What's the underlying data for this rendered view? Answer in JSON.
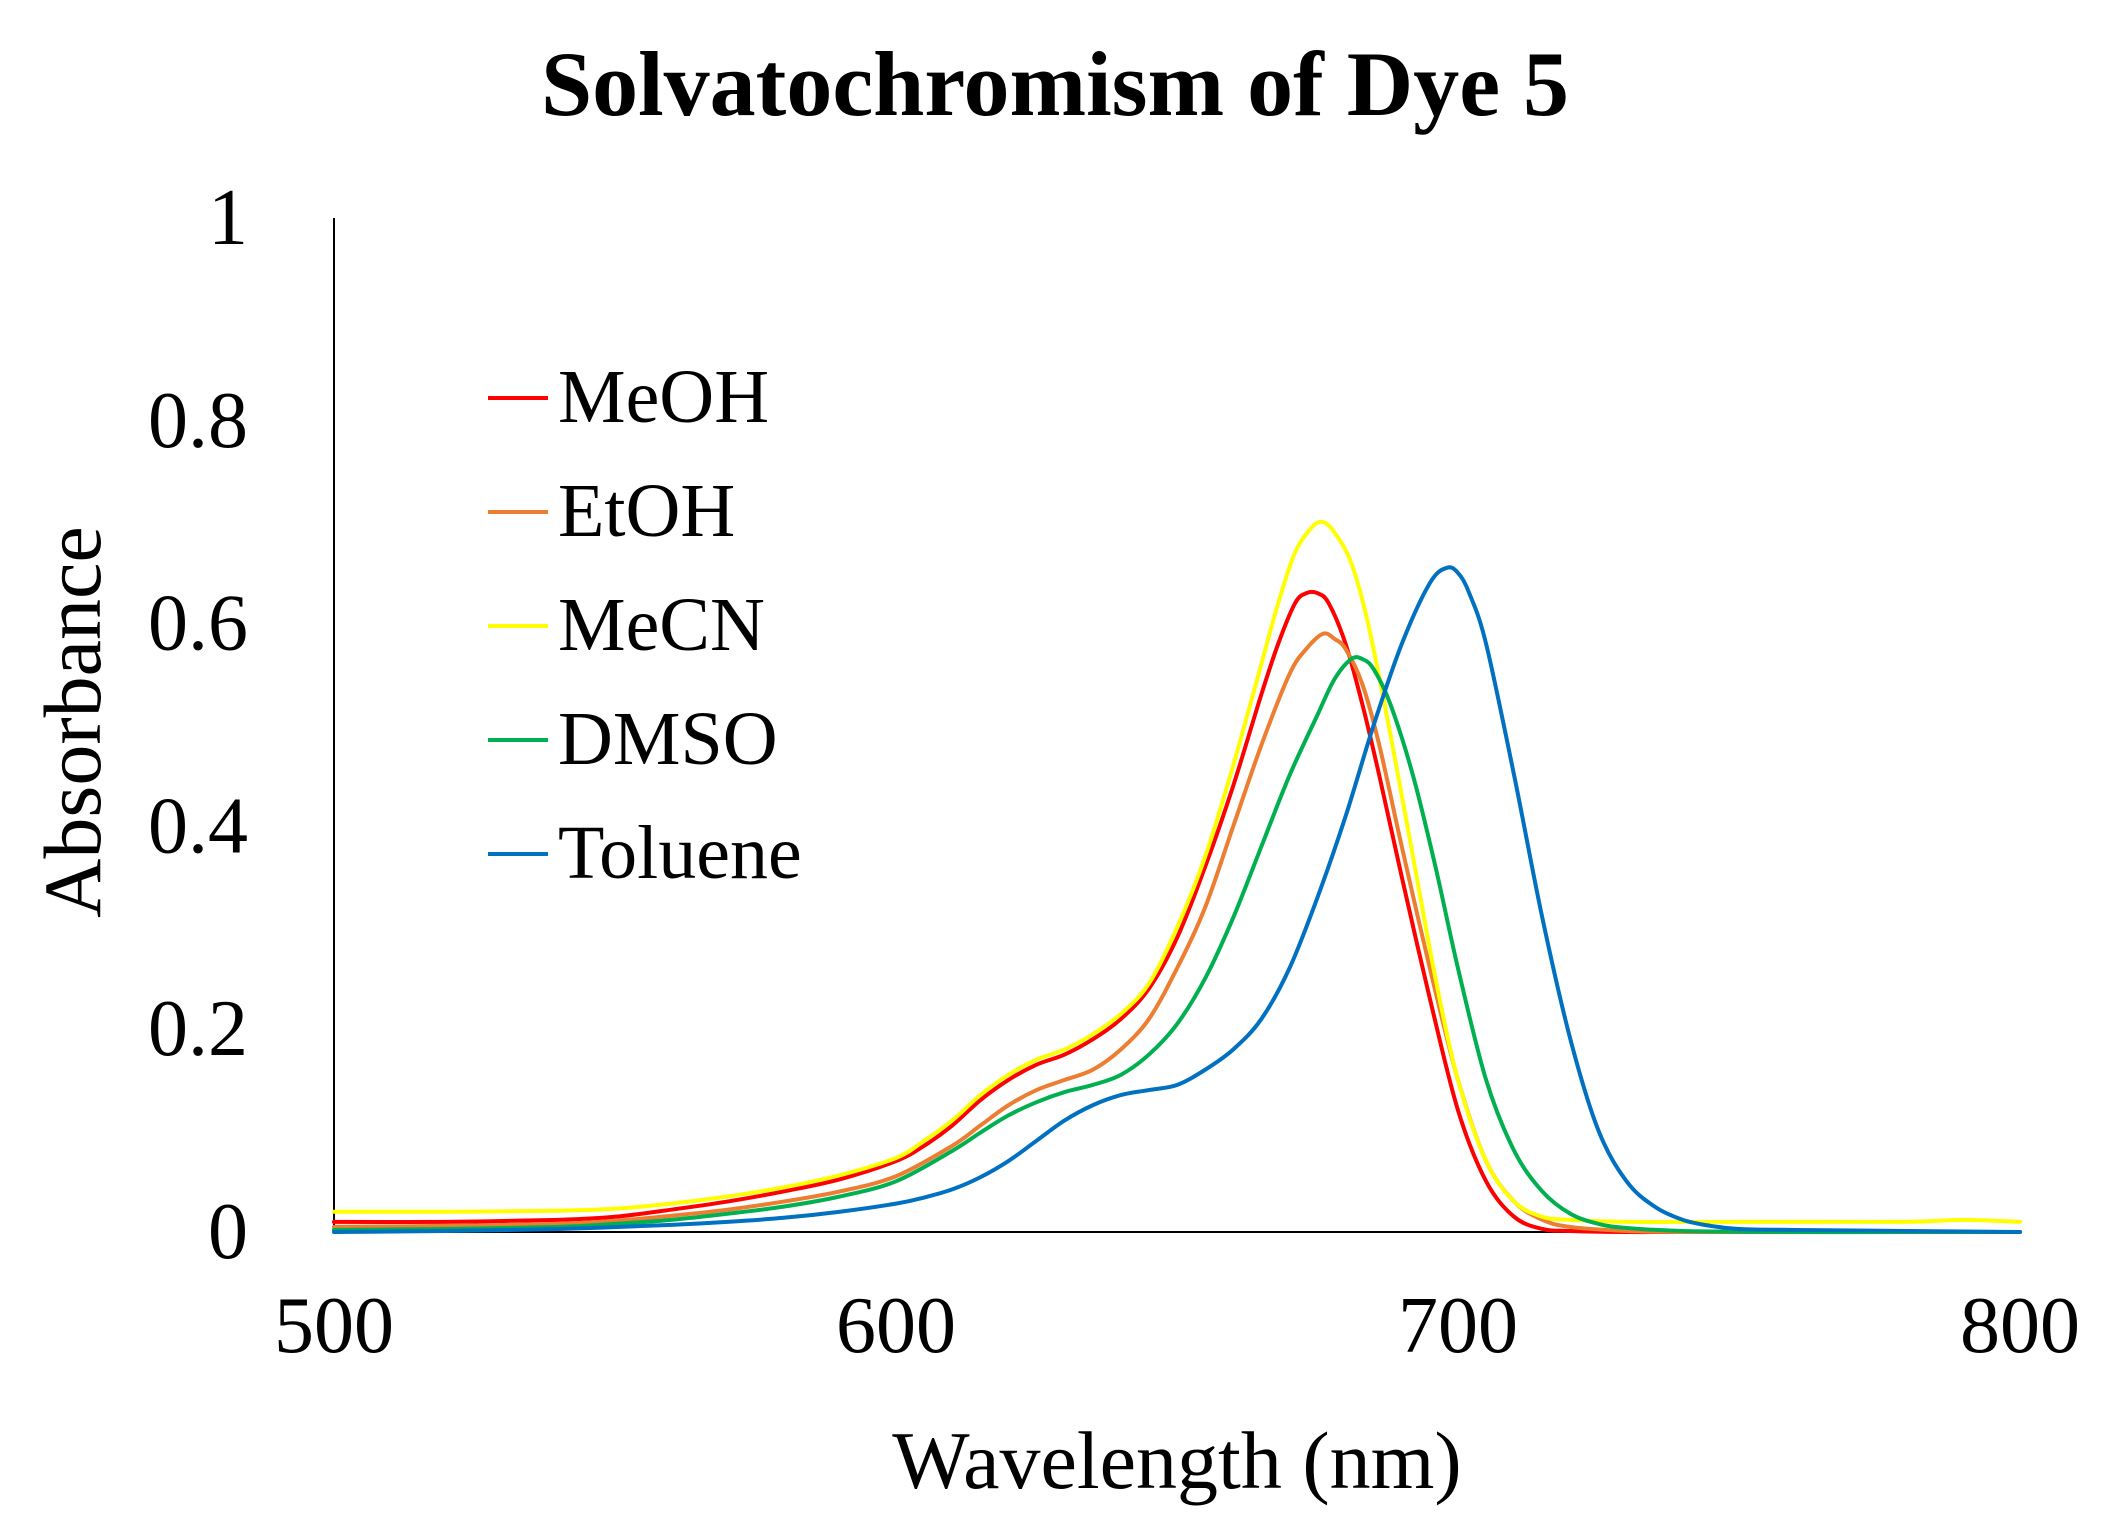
{
  "chart_data": {
    "type": "line",
    "title": "Solvatochromism of Dye 5",
    "xlabel": "Wavelength (nm)",
    "ylabel": "Absorbance",
    "xlim": [
      500,
      800
    ],
    "ylim": [
      0,
      1
    ],
    "xticks": [
      500,
      600,
      700,
      800
    ],
    "yticks": [
      0,
      0.2,
      0.4,
      0.6,
      0.8,
      1
    ],
    "ytick_labels": [
      "0",
      "0.2",
      "0.4",
      "0.6",
      "0.8",
      "1"
    ],
    "grid": false,
    "legend_position": "upper-left",
    "series": [
      {
        "name": "MeOH",
        "color": "#ff0000",
        "x": [
          500,
          520,
          540,
          550,
          560,
          570,
          580,
          590,
          600,
          605,
          610,
          615,
          620,
          625,
          630,
          635,
          640,
          645,
          650,
          655,
          660,
          665,
          668,
          671,
          673,
          675,
          677,
          680,
          683,
          686,
          690,
          695,
          700,
          705,
          710,
          715,
          720,
          730,
          740,
          760,
          780,
          800
        ],
        "y": [
          0.01,
          0.01,
          0.012,
          0.015,
          0.022,
          0.03,
          0.04,
          0.052,
          0.07,
          0.085,
          0.105,
          0.13,
          0.15,
          0.165,
          0.175,
          0.19,
          0.21,
          0.24,
          0.29,
          0.36,
          0.44,
          0.53,
          0.58,
          0.62,
          0.63,
          0.63,
          0.62,
          0.58,
          0.52,
          0.45,
          0.35,
          0.23,
          0.12,
          0.05,
          0.015,
          0.003,
          0.001,
          0,
          0,
          0,
          0,
          0
        ]
      },
      {
        "name": "EtOH",
        "color": "#ed7d31",
        "x": [
          500,
          520,
          540,
          550,
          560,
          570,
          580,
          590,
          600,
          610,
          615,
          620,
          625,
          630,
          635,
          640,
          645,
          650,
          655,
          660,
          665,
          670,
          673,
          676,
          678,
          680,
          683,
          686,
          690,
          695,
          700,
          705,
          710,
          715,
          720,
          730,
          740,
          760,
          780,
          800
        ],
        "y": [
          0.005,
          0.006,
          0.008,
          0.011,
          0.016,
          0.022,
          0.03,
          0.04,
          0.055,
          0.085,
          0.105,
          0.125,
          0.14,
          0.15,
          0.16,
          0.18,
          0.21,
          0.26,
          0.32,
          0.4,
          0.48,
          0.55,
          0.575,
          0.59,
          0.585,
          0.575,
          0.54,
          0.48,
          0.38,
          0.26,
          0.15,
          0.07,
          0.03,
          0.012,
          0.005,
          0.001,
          0,
          0,
          0,
          0
        ]
      },
      {
        "name": "MeCN",
        "color": "#ffff00",
        "x": [
          500,
          520,
          540,
          550,
          560,
          570,
          580,
          590,
          600,
          605,
          610,
          615,
          620,
          625,
          630,
          635,
          640,
          645,
          650,
          655,
          660,
          665,
          668,
          671,
          674,
          676,
          678,
          681,
          684,
          688,
          692,
          696,
          700,
          705,
          710,
          715,
          720,
          730,
          740,
          760,
          780,
          790,
          800
        ],
        "y": [
          0.02,
          0.02,
          0.021,
          0.023,
          0.028,
          0.035,
          0.044,
          0.056,
          0.073,
          0.09,
          0.11,
          0.135,
          0.155,
          0.17,
          0.18,
          0.195,
          0.215,
          0.245,
          0.3,
          0.37,
          0.46,
          0.56,
          0.62,
          0.67,
          0.695,
          0.7,
          0.69,
          0.66,
          0.6,
          0.49,
          0.37,
          0.25,
          0.15,
          0.07,
          0.03,
          0.015,
          0.012,
          0.01,
          0.01,
          0.01,
          0.01,
          0.012,
          0.01
        ]
      },
      {
        "name": "DMSO",
        "color": "#00b050",
        "x": [
          500,
          520,
          540,
          550,
          560,
          570,
          580,
          590,
          600,
          610,
          615,
          620,
          625,
          630,
          635,
          640,
          645,
          650,
          655,
          660,
          665,
          670,
          675,
          678,
          681,
          683,
          685,
          688,
          692,
          696,
          700,
          705,
          710,
          715,
          720,
          725,
          730,
          740,
          760,
          780,
          800
        ],
        "y": [
          0.002,
          0.003,
          0.005,
          0.008,
          0.012,
          0.018,
          0.025,
          0.035,
          0.05,
          0.08,
          0.098,
          0.115,
          0.128,
          0.138,
          0.145,
          0.155,
          0.175,
          0.205,
          0.25,
          0.31,
          0.38,
          0.45,
          0.51,
          0.545,
          0.565,
          0.565,
          0.555,
          0.52,
          0.45,
          0.36,
          0.26,
          0.15,
          0.08,
          0.04,
          0.018,
          0.008,
          0.004,
          0.001,
          0,
          0,
          0
        ]
      },
      {
        "name": "Toluene",
        "color": "#0070c0",
        "x": [
          500,
          520,
          540,
          560,
          570,
          580,
          590,
          600,
          605,
          610,
          615,
          620,
          625,
          630,
          635,
          640,
          645,
          650,
          655,
          660,
          665,
          670,
          675,
          680,
          685,
          690,
          695,
          698,
          700,
          702,
          705,
          710,
          715,
          720,
          725,
          730,
          735,
          740,
          745,
          750,
          760,
          780,
          800
        ],
        "y": [
          0,
          0.001,
          0.003,
          0.007,
          0.01,
          0.014,
          0.02,
          0.028,
          0.034,
          0.042,
          0.054,
          0.07,
          0.09,
          0.11,
          0.125,
          0.135,
          0.14,
          0.145,
          0.16,
          0.18,
          0.21,
          0.26,
          0.33,
          0.41,
          0.5,
          0.58,
          0.64,
          0.655,
          0.65,
          0.63,
          0.58,
          0.45,
          0.31,
          0.19,
          0.1,
          0.05,
          0.025,
          0.012,
          0.006,
          0.003,
          0.002,
          0.001,
          0
        ]
      }
    ]
  }
}
